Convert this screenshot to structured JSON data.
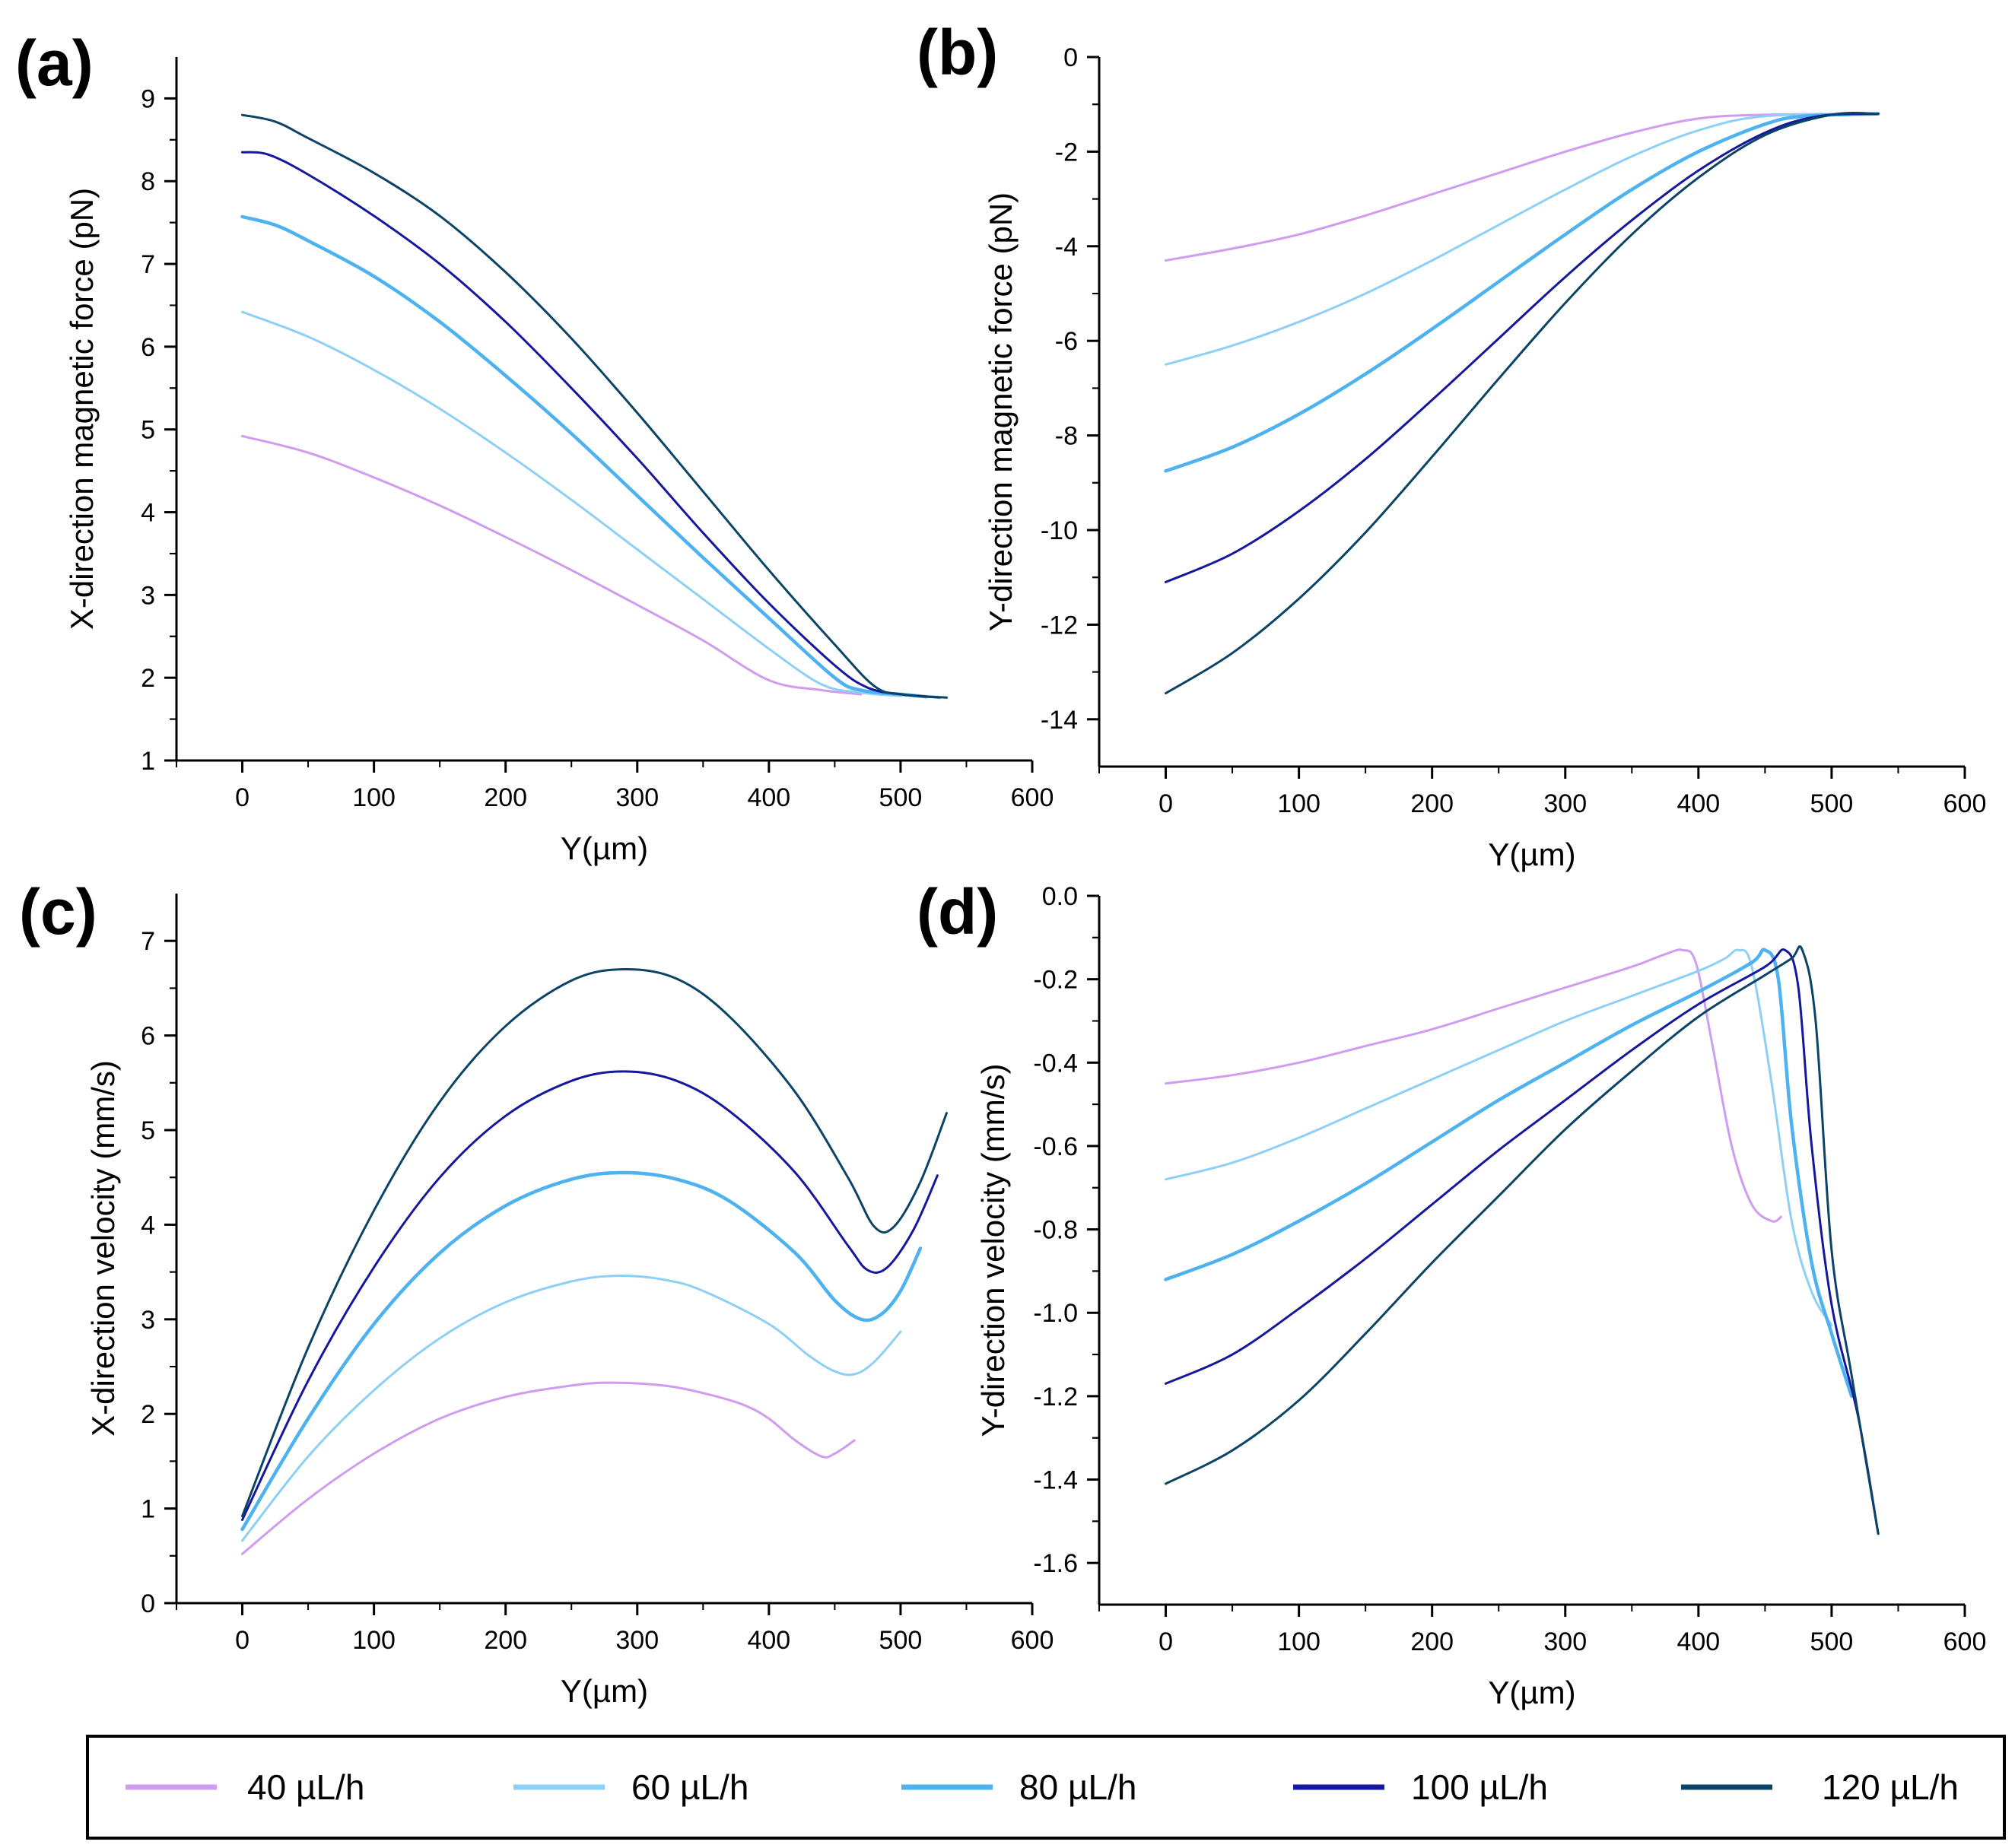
{
  "figure": {
    "legend": [
      {
        "label": "40 µL/h",
        "color": "#cf9cf0"
      },
      {
        "label": "60 µL/h",
        "color": "#8ed0f5"
      },
      {
        "label": "80 µL/h",
        "color": "#4db2ef"
      },
      {
        "label": "100 µL/h",
        "color": "#15179c"
      },
      {
        "label": "120 µL/h",
        "color": "#0b4466"
      }
    ]
  },
  "chart_data": [
    {
      "id": "a",
      "panel_label": "(a)",
      "type": "line",
      "xlabel": "Y(µm)",
      "ylabel": "X-direction magnetic force (pN)",
      "xlim": [
        -50,
        600
      ],
      "ylim": [
        1,
        9.5
      ],
      "xticks": [
        0,
        100,
        200,
        300,
        400,
        500,
        600
      ],
      "yticks": [
        1,
        2,
        3,
        4,
        5,
        6,
        7,
        8,
        9
      ],
      "series": [
        {
          "name": "40 µL/h",
          "color": "#cf9cf0",
          "x": [
            0,
            50,
            100,
            150,
            200,
            250,
            300,
            350,
            400,
            440,
            470
          ],
          "y": [
            4.92,
            4.72,
            4.42,
            4.08,
            3.7,
            3.3,
            2.88,
            2.45,
            1.97,
            1.85,
            1.8
          ]
        },
        {
          "name": "60 µL/h",
          "color": "#8ed0f5",
          "x": [
            0,
            50,
            100,
            150,
            200,
            250,
            300,
            350,
            400,
            440,
            470,
            500
          ],
          "y": [
            6.42,
            6.12,
            5.72,
            5.25,
            4.72,
            4.15,
            3.55,
            2.95,
            2.35,
            1.92,
            1.82,
            1.78
          ]
        },
        {
          "name": "80 µL/h",
          "color": "#4db2ef",
          "x": [
            0,
            25,
            50,
            100,
            150,
            200,
            250,
            300,
            350,
            400,
            450,
            470,
            500,
            520
          ],
          "y": [
            7.57,
            7.47,
            7.28,
            6.85,
            6.3,
            5.65,
            4.95,
            4.2,
            3.45,
            2.72,
            2.0,
            1.85,
            1.8,
            1.77
          ]
        },
        {
          "name": "100 µL/h",
          "color": "#15179c",
          "x": [
            0,
            20,
            50,
            100,
            150,
            200,
            250,
            300,
            350,
            400,
            450,
            475,
            500,
            530
          ],
          "y": [
            8.35,
            8.32,
            8.08,
            7.58,
            7.0,
            6.3,
            5.5,
            4.65,
            3.75,
            2.9,
            2.15,
            1.88,
            1.8,
            1.76
          ]
        },
        {
          "name": "120 µL/h",
          "color": "#0b4466",
          "x": [
            0,
            25,
            50,
            100,
            150,
            200,
            250,
            300,
            350,
            400,
            450,
            480,
            500,
            535
          ],
          "y": [
            8.8,
            8.72,
            8.52,
            8.1,
            7.58,
            6.9,
            6.1,
            5.2,
            4.25,
            3.3,
            2.4,
            1.9,
            1.8,
            1.76
          ]
        }
      ]
    },
    {
      "id": "b",
      "panel_label": "(b)",
      "type": "line",
      "xlabel": "Y(µm)",
      "ylabel": "Y-direction magnetic force (pN)",
      "xlim": [
        -50,
        600
      ],
      "ylim": [
        -15,
        0
      ],
      "xticks": [
        0,
        100,
        200,
        300,
        400,
        500,
        600
      ],
      "yticks": [
        0,
        -2,
        -4,
        -6,
        -8,
        -10,
        -12,
        -14
      ],
      "series": [
        {
          "name": "40 µL/h",
          "color": "#cf9cf0",
          "x": [
            0,
            50,
            100,
            150,
            200,
            250,
            300,
            350,
            400,
            450,
            535
          ],
          "y": [
            -4.3,
            -4.05,
            -3.75,
            -3.35,
            -2.9,
            -2.45,
            -2.0,
            -1.6,
            -1.3,
            -1.22,
            -1.2
          ]
        },
        {
          "name": "60 µL/h",
          "color": "#8ed0f5",
          "x": [
            0,
            50,
            100,
            150,
            200,
            250,
            300,
            350,
            400,
            450,
            535
          ],
          "y": [
            -6.5,
            -6.1,
            -5.6,
            -5.0,
            -4.3,
            -3.55,
            -2.8,
            -2.1,
            -1.55,
            -1.25,
            -1.2
          ]
        },
        {
          "name": "80 µL/h",
          "color": "#4db2ef",
          "x": [
            0,
            50,
            100,
            150,
            200,
            250,
            300,
            350,
            400,
            450,
            480,
            535
          ],
          "y": [
            -8.75,
            -8.25,
            -7.55,
            -6.7,
            -5.75,
            -4.75,
            -3.75,
            -2.8,
            -2.0,
            -1.42,
            -1.25,
            -1.2
          ]
        },
        {
          "name": "100 µL/h",
          "color": "#15179c",
          "x": [
            0,
            50,
            100,
            150,
            200,
            250,
            300,
            350,
            400,
            450,
            490,
            535
          ],
          "y": [
            -11.1,
            -10.5,
            -9.6,
            -8.5,
            -7.25,
            -5.95,
            -4.65,
            -3.45,
            -2.4,
            -1.6,
            -1.25,
            -1.2
          ]
        },
        {
          "name": "120 µL/h",
          "color": "#0b4466",
          "x": [
            0,
            50,
            100,
            150,
            200,
            250,
            300,
            350,
            400,
            450,
            500,
            535
          ],
          "y": [
            -13.45,
            -12.6,
            -11.45,
            -10.05,
            -8.45,
            -6.8,
            -5.2,
            -3.75,
            -2.55,
            -1.65,
            -1.22,
            -1.2
          ]
        }
      ]
    },
    {
      "id": "c",
      "panel_label": "(c)",
      "type": "line",
      "xlabel": "Y(µm)",
      "ylabel": "X-direction velocity (mm/s)",
      "xlim": [
        -50,
        600
      ],
      "ylim": [
        0,
        7.5
      ],
      "xticks": [
        0,
        100,
        200,
        300,
        400,
        500,
        600
      ],
      "yticks": [
        0,
        1,
        2,
        3,
        4,
        5,
        6,
        7
      ],
      "series": [
        {
          "name": "40 µL/h",
          "color": "#cf9cf0",
          "x": [
            0,
            50,
            100,
            150,
            200,
            250,
            280,
            320,
            350,
            380,
            400,
            420,
            440,
            450,
            465
          ],
          "y": [
            0.52,
            1.1,
            1.58,
            1.95,
            2.18,
            2.3,
            2.33,
            2.3,
            2.22,
            2.1,
            1.95,
            1.72,
            1.55,
            1.58,
            1.72
          ]
        },
        {
          "name": "60 µL/h",
          "color": "#8ed0f5",
          "x": [
            0,
            50,
            100,
            150,
            200,
            250,
            285,
            320,
            350,
            400,
            430,
            450,
            465,
            480,
            500
          ],
          "y": [
            0.66,
            1.55,
            2.25,
            2.8,
            3.18,
            3.4,
            3.46,
            3.42,
            3.3,
            2.95,
            2.62,
            2.45,
            2.42,
            2.55,
            2.87
          ]
        },
        {
          "name": "80 µL/h",
          "color": "#4db2ef",
          "x": [
            0,
            50,
            100,
            150,
            200,
            250,
            290,
            330,
            370,
            420,
            450,
            470,
            485,
            500,
            515
          ],
          "y": [
            0.78,
            1.95,
            2.95,
            3.7,
            4.2,
            4.48,
            4.55,
            4.48,
            4.25,
            3.7,
            3.2,
            3.0,
            3.05,
            3.3,
            3.75
          ]
        },
        {
          "name": "100 µL/h",
          "color": "#15179c",
          "x": [
            0,
            50,
            100,
            150,
            200,
            250,
            290,
            330,
            370,
            420,
            460,
            475,
            490,
            510,
            528
          ],
          "y": [
            0.88,
            2.35,
            3.55,
            4.5,
            5.15,
            5.52,
            5.62,
            5.52,
            5.2,
            4.55,
            3.78,
            3.52,
            3.55,
            3.95,
            4.52
          ]
        },
        {
          "name": "120 µL/h",
          "color": "#0b4466",
          "x": [
            0,
            50,
            100,
            150,
            200,
            250,
            290,
            330,
            370,
            420,
            460,
            480,
            495,
            515,
            535
          ],
          "y": [
            0.92,
            2.7,
            4.15,
            5.3,
            6.1,
            6.58,
            6.7,
            6.6,
            6.2,
            5.4,
            4.5,
            3.98,
            3.98,
            4.45,
            5.18
          ]
        }
      ]
    },
    {
      "id": "d",
      "panel_label": "(d)",
      "type": "line",
      "xlabel": "Y(µm)",
      "ylabel": "Y-direction velocity (mm/s)",
      "xlim": [
        -50,
        600
      ],
      "ylim": [
        -1.7,
        0
      ],
      "xticks": [
        0,
        100,
        200,
        300,
        400,
        500,
        600
      ],
      "yticks": [
        "0.0",
        "-0.2",
        "-0.4",
        "-0.6",
        "-0.8",
        "-1.0",
        "-1.2",
        "-1.4",
        "-1.6"
      ],
      "series": [
        {
          "name": "40 µL/h",
          "color": "#cf9cf0",
          "x": [
            0,
            50,
            100,
            150,
            200,
            250,
            300,
            350,
            375,
            388,
            398,
            410,
            425,
            440,
            455,
            462
          ],
          "y": [
            -0.45,
            -0.43,
            -0.4,
            -0.36,
            -0.32,
            -0.27,
            -0.22,
            -0.17,
            -0.14,
            -0.13,
            -0.16,
            -0.35,
            -0.6,
            -0.74,
            -0.78,
            -0.77
          ]
        },
        {
          "name": "60 µL/h",
          "color": "#8ed0f5",
          "x": [
            0,
            50,
            100,
            150,
            200,
            250,
            300,
            350,
            400,
            420,
            430,
            440,
            455,
            470,
            485,
            500
          ],
          "y": [
            -0.68,
            -0.64,
            -0.58,
            -0.51,
            -0.44,
            -0.37,
            -0.3,
            -0.24,
            -0.18,
            -0.15,
            -0.13,
            -0.17,
            -0.45,
            -0.78,
            -0.95,
            -1.03
          ]
        },
        {
          "name": "80 µL/h",
          "color": "#4db2ef",
          "x": [
            0,
            50,
            100,
            150,
            200,
            250,
            300,
            350,
            400,
            440,
            450,
            460,
            470,
            485,
            500,
            515
          ],
          "y": [
            -0.92,
            -0.86,
            -0.78,
            -0.69,
            -0.59,
            -0.49,
            -0.4,
            -0.31,
            -0.23,
            -0.16,
            -0.13,
            -0.2,
            -0.55,
            -0.88,
            -1.05,
            -1.2
          ]
        },
        {
          "name": "100 µL/h",
          "color": "#15179c",
          "x": [
            0,
            50,
            100,
            150,
            200,
            250,
            300,
            350,
            400,
            450,
            465,
            475,
            485,
            500,
            520,
            535
          ],
          "y": [
            -1.17,
            -1.1,
            -0.99,
            -0.87,
            -0.74,
            -0.61,
            -0.49,
            -0.37,
            -0.26,
            -0.17,
            -0.13,
            -0.22,
            -0.6,
            -0.98,
            -1.25,
            -1.53
          ]
        },
        {
          "name": "120 µL/h",
          "color": "#0b4466",
          "x": [
            0,
            50,
            100,
            150,
            200,
            250,
            300,
            350,
            400,
            450,
            470,
            478,
            488,
            500,
            515,
            535
          ],
          "y": [
            -1.41,
            -1.33,
            -1.21,
            -1.05,
            -0.88,
            -0.72,
            -0.56,
            -0.42,
            -0.29,
            -0.19,
            -0.15,
            -0.13,
            -0.3,
            -0.85,
            -1.15,
            -1.53
          ]
        }
      ]
    }
  ]
}
